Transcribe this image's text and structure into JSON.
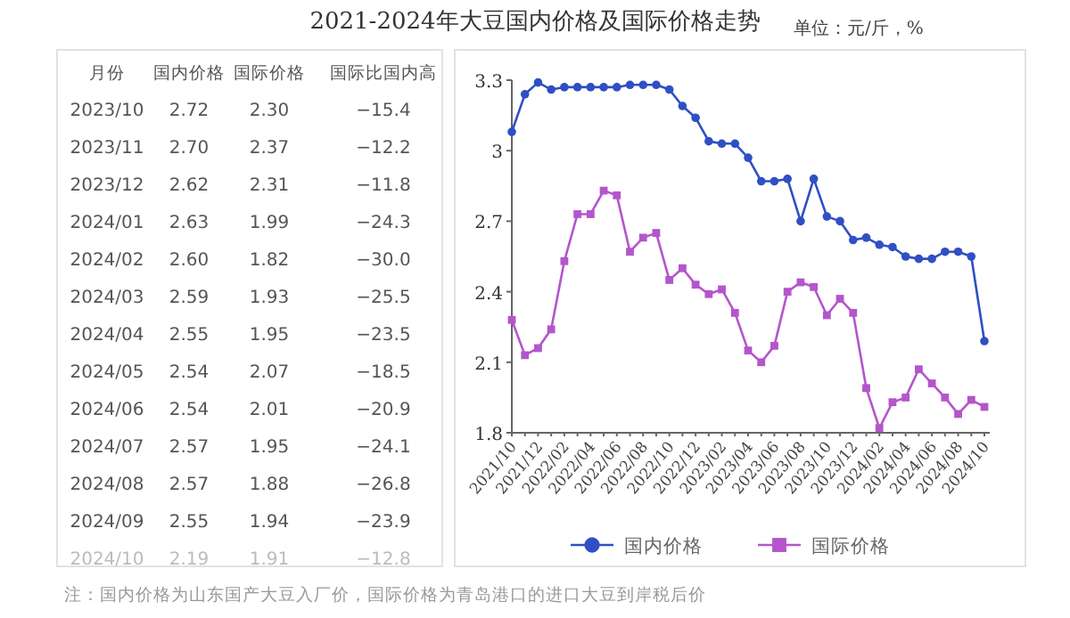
{
  "chart_data": [
    {
      "type": "other",
      "annotations": [
        "月份",
        "国内价格",
        "国际价格",
        "国际比国内高",
        "2023/10",
        "2.72",
        "2.30",
        "−15.4",
        "2023/11",
        "2.70",
        "2.37",
        "−12.2",
        "2023/12",
        "2.62",
        "2.31",
        "−11.8",
        "2024/01",
        "2.63",
        "1.99",
        "−24.3",
        "2024/02",
        "2.60",
        "1.82",
        "−30.0",
        "2024/03",
        "2.59",
        "1.93",
        "−25.5",
        "2024/04",
        "2.55",
        "1.95",
        "−23.5",
        "2024/05",
        "2.54",
        "2.07",
        "−18.5",
        "2024/06",
        "2.54",
        "2.01",
        "−20.9",
        "2024/07",
        "2.57",
        "1.95",
        "−24.1",
        "2024/08",
        "2.57",
        "1.88",
        "−26.8",
        "2024/09",
        "2.55",
        "1.94",
        "−23.9",
        "2024/10",
        "2.19",
        "1.91",
        "−12.8"
      ]
    },
    {
      "type": "line",
      "title": "2021-2024年大豆国内价格及国际价格走势",
      "subtitle": "单位：元/斤，%",
      "annotations": [
        "注：国内价格为山东国产大豆入厂价，国际价格为青岛港口的进口大豆到岸税后价"
      ],
      "categories": [
        "2021/10",
        null,
        "2021/12",
        null,
        "2022/02",
        null,
        "2022/04",
        null,
        "2022/06",
        null,
        "2022/08",
        null,
        "2022/10",
        null,
        "2022/12",
        null,
        "2023/02",
        null,
        "2023/04",
        null,
        "2023/06",
        null,
        "2023/08",
        null,
        "2023/10",
        null,
        "2023/12",
        null,
        "2024/02",
        null,
        "2024/04",
        null,
        "2024/06",
        null,
        "2024/08",
        null,
        "2024/10"
      ],
      "ylim": [
        1.8,
        3.3
      ],
      "yticks": [
        1.8,
        2.1,
        2.4,
        2.7,
        3,
        3.3
      ],
      "grid": false,
      "legend": "bottom",
      "line_style": "solid",
      "series": [
        {
          "name": "国内价格",
          "color": "#2f4fc4",
          "marker": "circle",
          "values": [
            3.08,
            3.24,
            3.29,
            3.26,
            3.27,
            3.27,
            3.27,
            3.27,
            3.27,
            3.28,
            3.28,
            3.28,
            3.26,
            3.19,
            3.14,
            3.04,
            3.03,
            3.03,
            2.97,
            2.87,
            2.87,
            2.88,
            2.7,
            2.88,
            2.72,
            2.7,
            2.62,
            2.63,
            2.6,
            2.59,
            2.55,
            2.54,
            2.54,
            2.57,
            2.57,
            2.55,
            2.19
          ]
        },
        {
          "name": "国际价格",
          "color": "#b455cc",
          "marker": "square",
          "values": [
            2.28,
            2.13,
            2.16,
            2.24,
            2.53,
            2.73,
            2.73,
            2.83,
            2.81,
            2.57,
            2.63,
            2.65,
            2.45,
            2.5,
            2.43,
            2.39,
            2.41,
            2.31,
            2.15,
            2.1,
            2.17,
            2.4,
            2.44,
            2.42,
            2.3,
            2.37,
            2.31,
            1.99,
            1.82,
            1.93,
            1.95,
            2.07,
            2.01,
            1.95,
            1.88,
            1.94,
            1.91
          ]
        }
      ]
    }
  ]
}
